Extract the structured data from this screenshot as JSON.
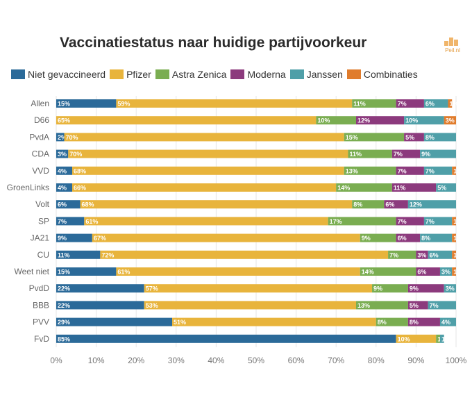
{
  "title": "Vaccinatiestatus naar huidige partijvoorkeur",
  "logo": {
    "text": "Peil.nl"
  },
  "chart_data": {
    "type": "bar",
    "orientation": "horizontal",
    "stacked": true,
    "title": "Vaccinatiestatus naar huidige partijvoorkeur",
    "xlabel": "",
    "ylabel": "",
    "xlim": [
      0,
      100
    ],
    "x_ticks": [
      "0%",
      "10%",
      "20%",
      "30%",
      "40%",
      "50%",
      "60%",
      "70%",
      "80%",
      "90%",
      "100%"
    ],
    "legend_position": "top",
    "grid": true,
    "categories": [
      "Allen",
      "D66",
      "PvdA",
      "CDA",
      "VVD",
      "GroenLinks",
      "Volt",
      "SP",
      "JA21",
      "CU",
      "Weet niet",
      "PvdD",
      "BBB",
      "PVV",
      "FvD"
    ],
    "series": [
      {
        "name": "Niet gevaccineerd",
        "color": "#2b6a99",
        "values": [
          15,
          0,
          2,
          3,
          4,
          4,
          6,
          7,
          9,
          11,
          15,
          22,
          22,
          29,
          85
        ]
      },
      {
        "name": "Pfizer",
        "color": "#e8b43c",
        "values": [
          59,
          65,
          70,
          70,
          68,
          66,
          68,
          61,
          67,
          72,
          61,
          57,
          53,
          51,
          10
        ]
      },
      {
        "name": "Astra Zenica",
        "color": "#7aad51",
        "values": [
          11,
          10,
          15,
          11,
          13,
          14,
          8,
          17,
          9,
          7,
          14,
          9,
          13,
          8,
          1
        ]
      },
      {
        "name": "Moderna",
        "color": "#8c3a7d",
        "values": [
          7,
          12,
          5,
          7,
          7,
          11,
          6,
          7,
          6,
          3,
          6,
          9,
          5,
          8,
          0
        ]
      },
      {
        "name": "Janssen",
        "color": "#4f9fa8",
        "values": [
          6,
          10,
          8,
          9,
          7,
          5,
          12,
          7,
          8,
          6,
          3,
          3,
          7,
          4,
          1
        ]
      },
      {
        "name": "Combinaties",
        "color": "#e07c2c",
        "values": [
          1,
          3,
          0,
          0,
          1,
          0,
          0,
          1,
          1,
          1,
          1,
          0,
          0,
          0,
          0
        ]
      }
    ],
    "data_labels": [
      [
        "15%",
        "59%",
        "11%",
        "7%",
        "6%",
        "1%"
      ],
      [
        "",
        "65%",
        "10%",
        "12%",
        "10%",
        "3%"
      ],
      [
        "2%",
        "70%",
        "15%",
        "5%",
        "8%",
        ""
      ],
      [
        "3%",
        "70%",
        "11%",
        "7%",
        "9%",
        ""
      ],
      [
        "4%",
        "68%",
        "13%",
        "7%",
        "7%",
        "1%"
      ],
      [
        "4%",
        "66%",
        "14%",
        "11%",
        "5%",
        ""
      ],
      [
        "6%",
        "68%",
        "8%",
        "6%",
        "12%",
        ""
      ],
      [
        "7%",
        "61%",
        "17%",
        "7%",
        "7%",
        "1%"
      ],
      [
        "9%",
        "67%",
        "9%",
        "6%",
        "8%",
        "1%"
      ],
      [
        "11%",
        "72%",
        "7%",
        "3%",
        "6%",
        "1%"
      ],
      [
        "15%",
        "61%",
        "14%",
        "6%",
        "3%",
        "1%"
      ],
      [
        "22%",
        "57%",
        "9%",
        "9%",
        "3%",
        ""
      ],
      [
        "22%",
        "53%",
        "13%",
        "5%",
        "7%",
        ""
      ],
      [
        "29%",
        "51%",
        "8%",
        "8%",
        "4%",
        ""
      ],
      [
        "85%",
        "10%",
        "1%",
        "",
        "1%",
        ""
      ]
    ]
  }
}
